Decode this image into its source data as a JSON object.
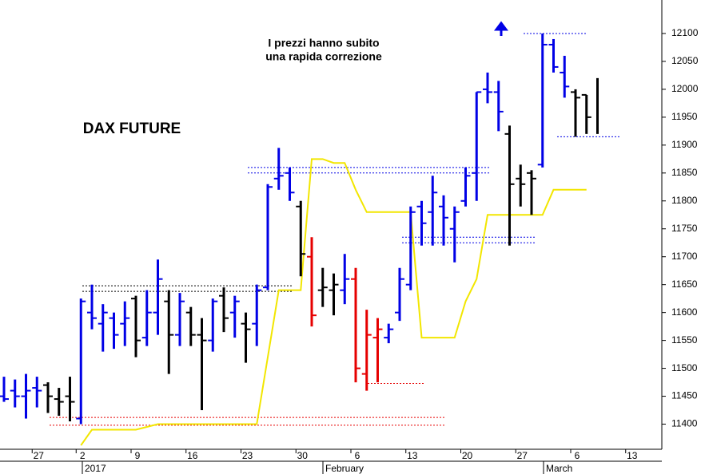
{
  "chart_data": {
    "type": "ohlc",
    "title": "DAX FUTURE",
    "annotations": [
      "I prezzi hanno subito",
      "una rapida correzione"
    ],
    "periods": [
      "2017",
      "February",
      "March"
    ],
    "categories": [
      null,
      null,
      null,
      "27",
      null,
      null,
      null,
      "2",
      null,
      null,
      null,
      null,
      "9",
      null,
      null,
      null,
      null,
      "16",
      null,
      null,
      null,
      null,
      "23",
      null,
      null,
      null,
      null,
      "30",
      null,
      null,
      null,
      null,
      "6",
      null,
      null,
      null,
      null,
      "13",
      null,
      null,
      null,
      null,
      "20",
      null,
      null,
      null,
      null,
      "27",
      null,
      null,
      null,
      null,
      "6",
      null,
      null,
      null,
      null,
      "13"
    ],
    "open": [
      11450,
      11460,
      11450,
      11465,
      11470,
      11445,
      11450,
      11410,
      11600,
      11580,
      11590,
      11580,
      11625,
      11555,
      11600,
      11620,
      11560,
      11600,
      11560,
      11550,
      11630,
      11600,
      11580,
      11580,
      11645,
      11840,
      11850,
      11790,
      11700,
      11640,
      11640,
      11640,
      11660,
      11490,
      11555,
      11555,
      11600,
      11650,
      11790,
      11780,
      11790,
      11750,
      11800,
      11850,
      12000,
      11995,
      11920,
      11840,
      11850,
      11865,
      12080,
      12030,
      11995,
      11990,
      null,
      null,
      null,
      null
    ],
    "high": [
      11485,
      11480,
      11490,
      11485,
      11475,
      11465,
      11485,
      11625,
      11650,
      11615,
      11600,
      11620,
      11630,
      11640,
      11695,
      11640,
      11635,
      11610,
      11590,
      11625,
      11645,
      11630,
      11600,
      11650,
      11830,
      11895,
      11860,
      11800,
      11735,
      11680,
      11670,
      11705,
      11680,
      11605,
      11590,
      11580,
      11680,
      11790,
      11800,
      11845,
      11810,
      11790,
      11860,
      11995,
      12030,
      12015,
      11935,
      11865,
      11855,
      12100,
      12090,
      12060,
      12000,
      11990,
      12020,
      null,
      null,
      null
    ],
    "low": [
      11440,
      11430,
      11410,
      11430,
      11420,
      11415,
      11405,
      11400,
      11570,
      11530,
      11535,
      11540,
      11520,
      11540,
      11560,
      11490,
      11540,
      11540,
      11425,
      11530,
      11565,
      11555,
      11510,
      11540,
      11640,
      11820,
      11800,
      11665,
      11575,
      11610,
      11595,
      11615,
      11475,
      11460,
      11475,
      11545,
      11585,
      11640,
      11720,
      11720,
      11720,
      11690,
      11790,
      11800,
      11975,
      11925,
      11720,
      11790,
      11775,
      11860,
      12030,
      11985,
      11915,
      11920,
      11920,
      null,
      null,
      null
    ],
    "close": [
      11445,
      11450,
      11460,
      11460,
      11450,
      11440,
      11440,
      11620,
      11590,
      11600,
      11560,
      11590,
      11550,
      11600,
      11660,
      11560,
      11620,
      11560,
      11550,
      11620,
      11590,
      11620,
      11570,
      11640,
      11825,
      11845,
      11815,
      11705,
      11595,
      11645,
      11650,
      11660,
      11500,
      11560,
      11570,
      11570,
      11660,
      11780,
      11760,
      11815,
      11770,
      11780,
      11845,
      11995,
      11995,
      11960,
      11830,
      11830,
      11840,
      12080,
      12040,
      12005,
      11985,
      11950,
      null,
      null,
      null,
      null
    ],
    "colors": [
      "#0000e6",
      "#0000e6",
      "#0000e6",
      "#0000e6",
      "#000000",
      "#000000",
      "#000000",
      "#0000e6",
      "#0000e6",
      "#0000e6",
      "#0000e6",
      "#0000e6",
      "#000000",
      "#0000e6",
      "#0000e6",
      "#000000",
      "#0000e6",
      "#000000",
      "#000000",
      "#0000e6",
      "#000000",
      "#0000e6",
      "#000000",
      "#0000e6",
      "#0000e6",
      "#0000e6",
      "#0000e6",
      "#000000",
      "#e60000",
      "#000000",
      "#000000",
      "#0000e6",
      "#e60000",
      "#e60000",
      "#e60000",
      "#0000e6",
      "#0000e6",
      "#0000e6",
      "#0000e6",
      "#0000e6",
      "#0000e6",
      "#0000e6",
      "#0000e6",
      "#0000e6",
      "#0000e6",
      "#0000e6",
      "#000000",
      "#000000",
      "#000000",
      "#0000e6",
      "#0000e6",
      "#0000e6",
      "#000000",
      "#000000",
      "#000000",
      null,
      null,
      null
    ],
    "overlay": {
      "color": "#f2e600",
      "values": [
        null,
        null,
        null,
        null,
        null,
        null,
        null,
        11362,
        11390,
        11390,
        11390,
        11390,
        11390,
        11395,
        11400,
        11400,
        11400,
        11400,
        11400,
        11400,
        11400,
        11400,
        11400,
        11400,
        11520,
        11640,
        11640,
        11640,
        11875,
        11875,
        11868,
        11868,
        11820,
        11780,
        11780,
        11780,
        11780,
        11780,
        11555,
        11555,
        11555,
        11555,
        11620,
        11660,
        11775,
        11775,
        11775,
        11775,
        11775,
        11775,
        11820,
        11820,
        11820,
        11820,
        null,
        null,
        null,
        null
      ]
    },
    "levels": [
      {
        "value": 11648,
        "color": "#000000"
      },
      {
        "value": 11638,
        "color": "#000000"
      },
      {
        "value": 11860,
        "color": "#0000e6"
      },
      {
        "value": 11850,
        "color": "#0000e6"
      },
      {
        "value": 11735,
        "color": "#0000e6"
      },
      {
        "value": 11725,
        "color": "#0000e6"
      },
      {
        "value": 12100,
        "color": "#0000e6"
      },
      {
        "value": 11915,
        "color": "#0000e6"
      },
      {
        "value": 11412,
        "color": "#e60000"
      },
      {
        "value": 11398,
        "color": "#e60000"
      },
      {
        "value": 11473,
        "color": "#e60000"
      }
    ],
    "ylim": [
      11355,
      12160
    ],
    "yticks": [
      11400,
      11450,
      11500,
      11550,
      11600,
      11650,
      11700,
      11750,
      11800,
      11850,
      11900,
      11950,
      12000,
      12050,
      12100
    ]
  }
}
